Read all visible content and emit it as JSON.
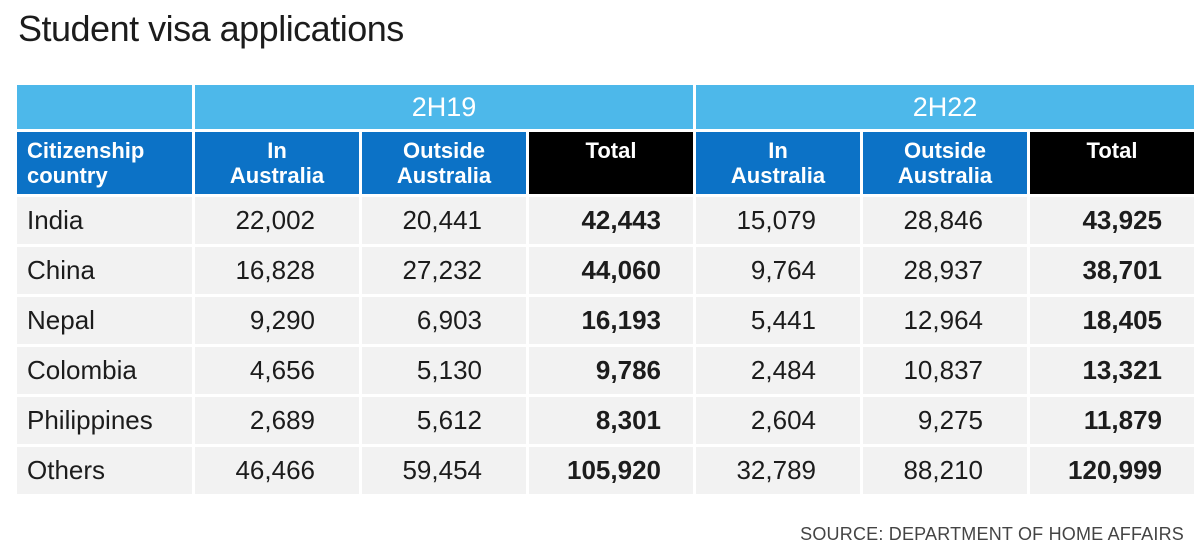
{
  "title": "Student visa applications",
  "source": "SOURCE: DEPARTMENT OF HOME AFFAIRS",
  "header": {
    "groups": [
      "2H19",
      "2H22"
    ],
    "row_header": [
      "Citizenship",
      "country"
    ],
    "in_australia": [
      "In",
      "Australia"
    ],
    "outside_australia": [
      "Outside",
      "Australia"
    ],
    "total": "Total"
  },
  "colors": {
    "group_header": "#4db8ea",
    "sub_header": "#0c72c6",
    "total_header": "#000000",
    "row_bg": "#f2f2f2"
  },
  "chart_data": {
    "type": "table",
    "title": "Student visa applications",
    "columns": [
      "Citizenship country",
      "2H19 In Australia",
      "2H19 Outside Australia",
      "2H19 Total",
      "2H22 In Australia",
      "2H22 Outside Australia",
      "2H22 Total"
    ],
    "rows": [
      {
        "country": "India",
        "cells": [
          "22,002",
          "20,441",
          "42,443",
          "15,079",
          "28,846",
          "43,925"
        ]
      },
      {
        "country": "China",
        "cells": [
          "16,828",
          "27,232",
          "44,060",
          "9,764",
          "28,937",
          "38,701"
        ]
      },
      {
        "country": "Nepal",
        "cells": [
          "9,290",
          "6,903",
          "16,193",
          "5,441",
          "12,964",
          "18,405"
        ]
      },
      {
        "country": "Colombia",
        "cells": [
          "4,656",
          "5,130",
          "9,786",
          "2,484",
          "10,837",
          "13,321"
        ]
      },
      {
        "country": "Philippines",
        "cells": [
          "2,689",
          "5,612",
          "8,301",
          "2,604",
          "9,275",
          "11,879"
        ]
      },
      {
        "country": "Others",
        "cells": [
          "46,466",
          "59,454",
          "105,920",
          "32,789",
          "88,210",
          "120,999"
        ]
      }
    ]
  }
}
